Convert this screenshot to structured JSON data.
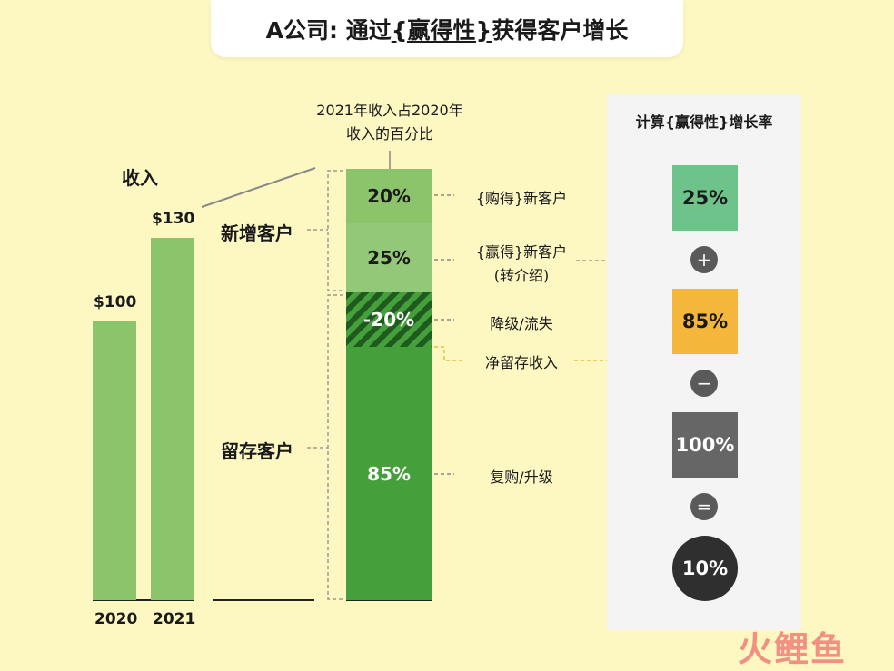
{
  "title": {
    "prefix": "A公司: 通过",
    "highlight": "{赢得性}",
    "suffix": "获得客户增长"
  },
  "revenue": {
    "label": "收入",
    "bars": [
      {
        "year": "2020",
        "value_label": "$100",
        "value": 100
      },
      {
        "year": "2021",
        "value_label": "$130",
        "value": 130
      }
    ]
  },
  "breakdown": {
    "header_line1": "2021年收入占2020年",
    "header_line2": "收入的百分比",
    "group_new": "新增客户",
    "group_retained": "留存客户",
    "segments": [
      {
        "value": "20%",
        "note": "{购得}新客户"
      },
      {
        "value": "25%",
        "note_line1": "{赢得}新客户",
        "note_line2": "(转介绍)"
      },
      {
        "value": "-20%",
        "note": "降级/流失"
      },
      {
        "value": "85%",
        "note": "复购/升级"
      }
    ],
    "net_retention_label": "净留存收入"
  },
  "calc": {
    "title": "计算{赢得性}增长率",
    "step1": "25%",
    "op1": "+",
    "step2": "85%",
    "op2": "−",
    "step3": "100%",
    "op3": "=",
    "result": "10%"
  },
  "watermark": "火鲤鱼",
  "colors": {
    "light_green": "#8cc46c",
    "mid_green": "#93c878",
    "dark_green": "#45a03c",
    "teal_green": "#6dc38a",
    "amber": "#f4b73c",
    "gray": "#666666",
    "dark": "#2f2f2f",
    "bg": "#fdf8c2"
  }
}
